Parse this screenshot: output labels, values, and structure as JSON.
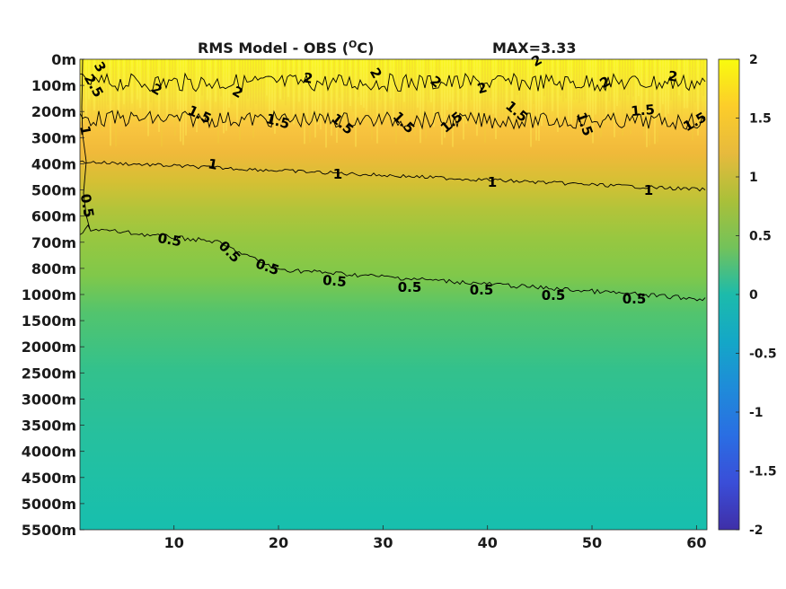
{
  "chart_data": {
    "type": "heatmap",
    "title": "RMS Model - OBS (",
    "title_unit": "O",
    "title_unit_end": "C)",
    "max_label": "MAX=3.33",
    "xlabel": "",
    "ylabel": "",
    "x_ticks": [
      10,
      20,
      30,
      40,
      50,
      60
    ],
    "xlim": [
      1,
      61
    ],
    "y_tick_labels": [
      "0m",
      "100m",
      "200m",
      "300m",
      "400m",
      "500m",
      "600m",
      "700m",
      "800m",
      "1000m",
      "1500m",
      "2000m",
      "2500m",
      "3000m",
      "3500m",
      "4000m",
      "4500m",
      "5000m",
      "5500m"
    ],
    "colorbar": {
      "ticks": [
        "2",
        "1.5",
        "1",
        "0.5",
        "0",
        "-0.5",
        "-1",
        "-1.5",
        "-2"
      ],
      "range": [
        -2,
        2
      ],
      "colormap": "parula"
    },
    "contours": [
      {
        "level": 2,
        "labels": [
          "2",
          "2",
          "2",
          "2",
          "2",
          "2",
          "2",
          "2",
          "2"
        ]
      },
      {
        "level": 1.5,
        "labels": [
          "1.5",
          "1.5",
          "1.5",
          "1.5",
          "1.5",
          "1.5",
          "1.5",
          "1.5",
          "1.5",
          "1.5",
          "1.5"
        ]
      },
      {
        "level": 1,
        "labels": [
          "1",
          "1",
          "1",
          "1",
          "1"
        ]
      },
      {
        "level": 0.5,
        "labels": [
          "0.5",
          "0.5",
          "0.5",
          "0.5",
          "0.5",
          "0.5",
          "0.5",
          "0.5",
          "0.5",
          "0.5"
        ]
      }
    ],
    "edge_labels": [
      "3",
      "2.5",
      "1",
      "0.5"
    ],
    "depth_profile": [
      {
        "depth": "0m",
        "value": 2.4
      },
      {
        "depth": "100m",
        "value": 2.1
      },
      {
        "depth": "200m",
        "value": 1.6
      },
      {
        "depth": "300m",
        "value": 1.35
      },
      {
        "depth": "400m",
        "value": 1.15
      },
      {
        "depth": "500m",
        "value": 0.98
      },
      {
        "depth": "600m",
        "value": 0.85
      },
      {
        "depth": "700m",
        "value": 0.75
      },
      {
        "depth": "800m",
        "value": 0.62
      },
      {
        "depth": "1000m",
        "value": 0.5
      },
      {
        "depth": "1500m",
        "value": 0.38
      },
      {
        "depth": "2000m",
        "value": 0.3
      },
      {
        "depth": "2500m",
        "value": 0.26
      },
      {
        "depth": "3000m",
        "value": 0.22
      },
      {
        "depth": "3500m",
        "value": 0.2
      },
      {
        "depth": "4000m",
        "value": 0.18
      },
      {
        "depth": "4500m",
        "value": 0.16
      },
      {
        "depth": "5000m",
        "value": 0.14
      },
      {
        "depth": "5500m",
        "value": 0.12
      }
    ]
  }
}
